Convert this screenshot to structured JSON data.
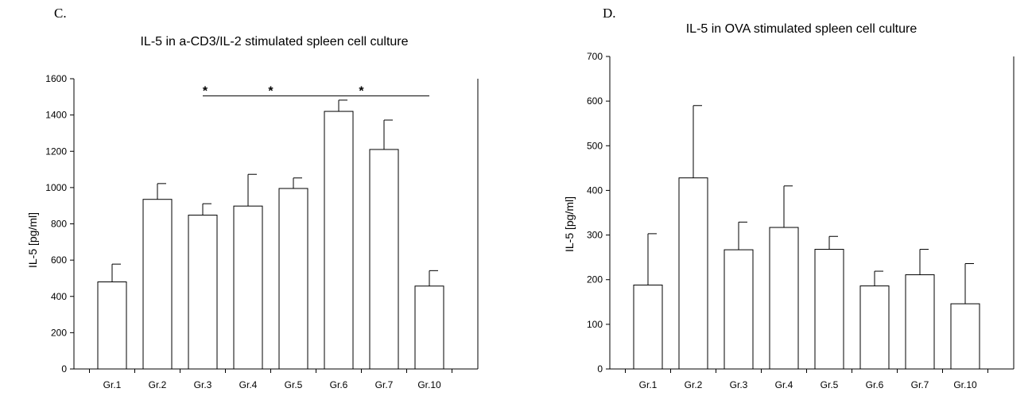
{
  "chart_data": [
    {
      "type": "bar",
      "panel_letter": "C.",
      "title": "IL-5 in a-CD3/IL-2 stimulated spleen cell culture",
      "xlabel": "",
      "ylabel": "IL-5 [pg/ml]",
      "ylim": [
        0,
        1600
      ],
      "yticks": [
        0,
        200,
        400,
        600,
        800,
        1000,
        1200,
        1400,
        1600
      ],
      "categories": [
        "Gr.1",
        "Gr.2",
        "Gr.3",
        "Gr.4",
        "Gr.5",
        "Gr.6",
        "Gr.7",
        "Gr.10"
      ],
      "values": [
        480,
        935,
        848,
        898,
        995,
        1420,
        1210,
        457
      ],
      "errors": [
        98,
        87,
        63,
        175,
        58,
        62,
        162,
        85
      ],
      "grid": false,
      "significance": {
        "marker": "*",
        "span": [
          "Gr.3",
          "Gr.10"
        ],
        "level": 1505,
        "stars_at": [
          "Gr.4",
          "Gr.6"
        ]
      }
    },
    {
      "type": "bar",
      "panel_letter": "D.",
      "title": "IL-5 in OVA stimulated spleen cell culture",
      "xlabel": "",
      "ylabel": "IL-5 [pg/ml]",
      "ylim": [
        0,
        700
      ],
      "yticks": [
        0,
        100,
        200,
        300,
        400,
        500,
        600,
        700
      ],
      "categories": [
        "Gr.1",
        "Gr.2",
        "Gr.3",
        "Gr.4",
        "Gr.5",
        "Gr.6",
        "Gr.7",
        "Gr.10"
      ],
      "values": [
        188,
        428,
        267,
        317,
        268,
        186,
        211,
        146
      ],
      "errors": [
        115,
        162,
        62,
        93,
        29,
        33,
        57,
        90
      ],
      "grid": false
    }
  ]
}
